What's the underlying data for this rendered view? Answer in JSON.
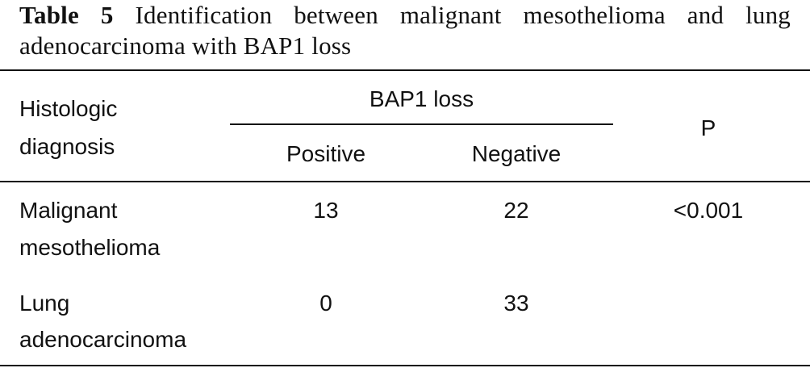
{
  "caption": {
    "label": "Table 5",
    "text": "Identification between malignant mesothelioma and lung adenocarcinoma with BAP1 loss"
  },
  "table": {
    "header": {
      "row_label_line1": "Histologic",
      "row_label_line2": "diagnosis",
      "group": "BAP1 loss",
      "sub_positive": "Positive",
      "sub_negative": "Negative",
      "p": "P"
    },
    "rows": [
      {
        "diagnosis_line1": "Malignant",
        "diagnosis_line2": "mesothelioma",
        "positive": "13",
        "negative": "22",
        "p": "<0.001"
      },
      {
        "diagnosis_line1": "Lung",
        "diagnosis_line2": "adenocarcinoma",
        "positive": "0",
        "negative": "33",
        "p": ""
      }
    ]
  }
}
